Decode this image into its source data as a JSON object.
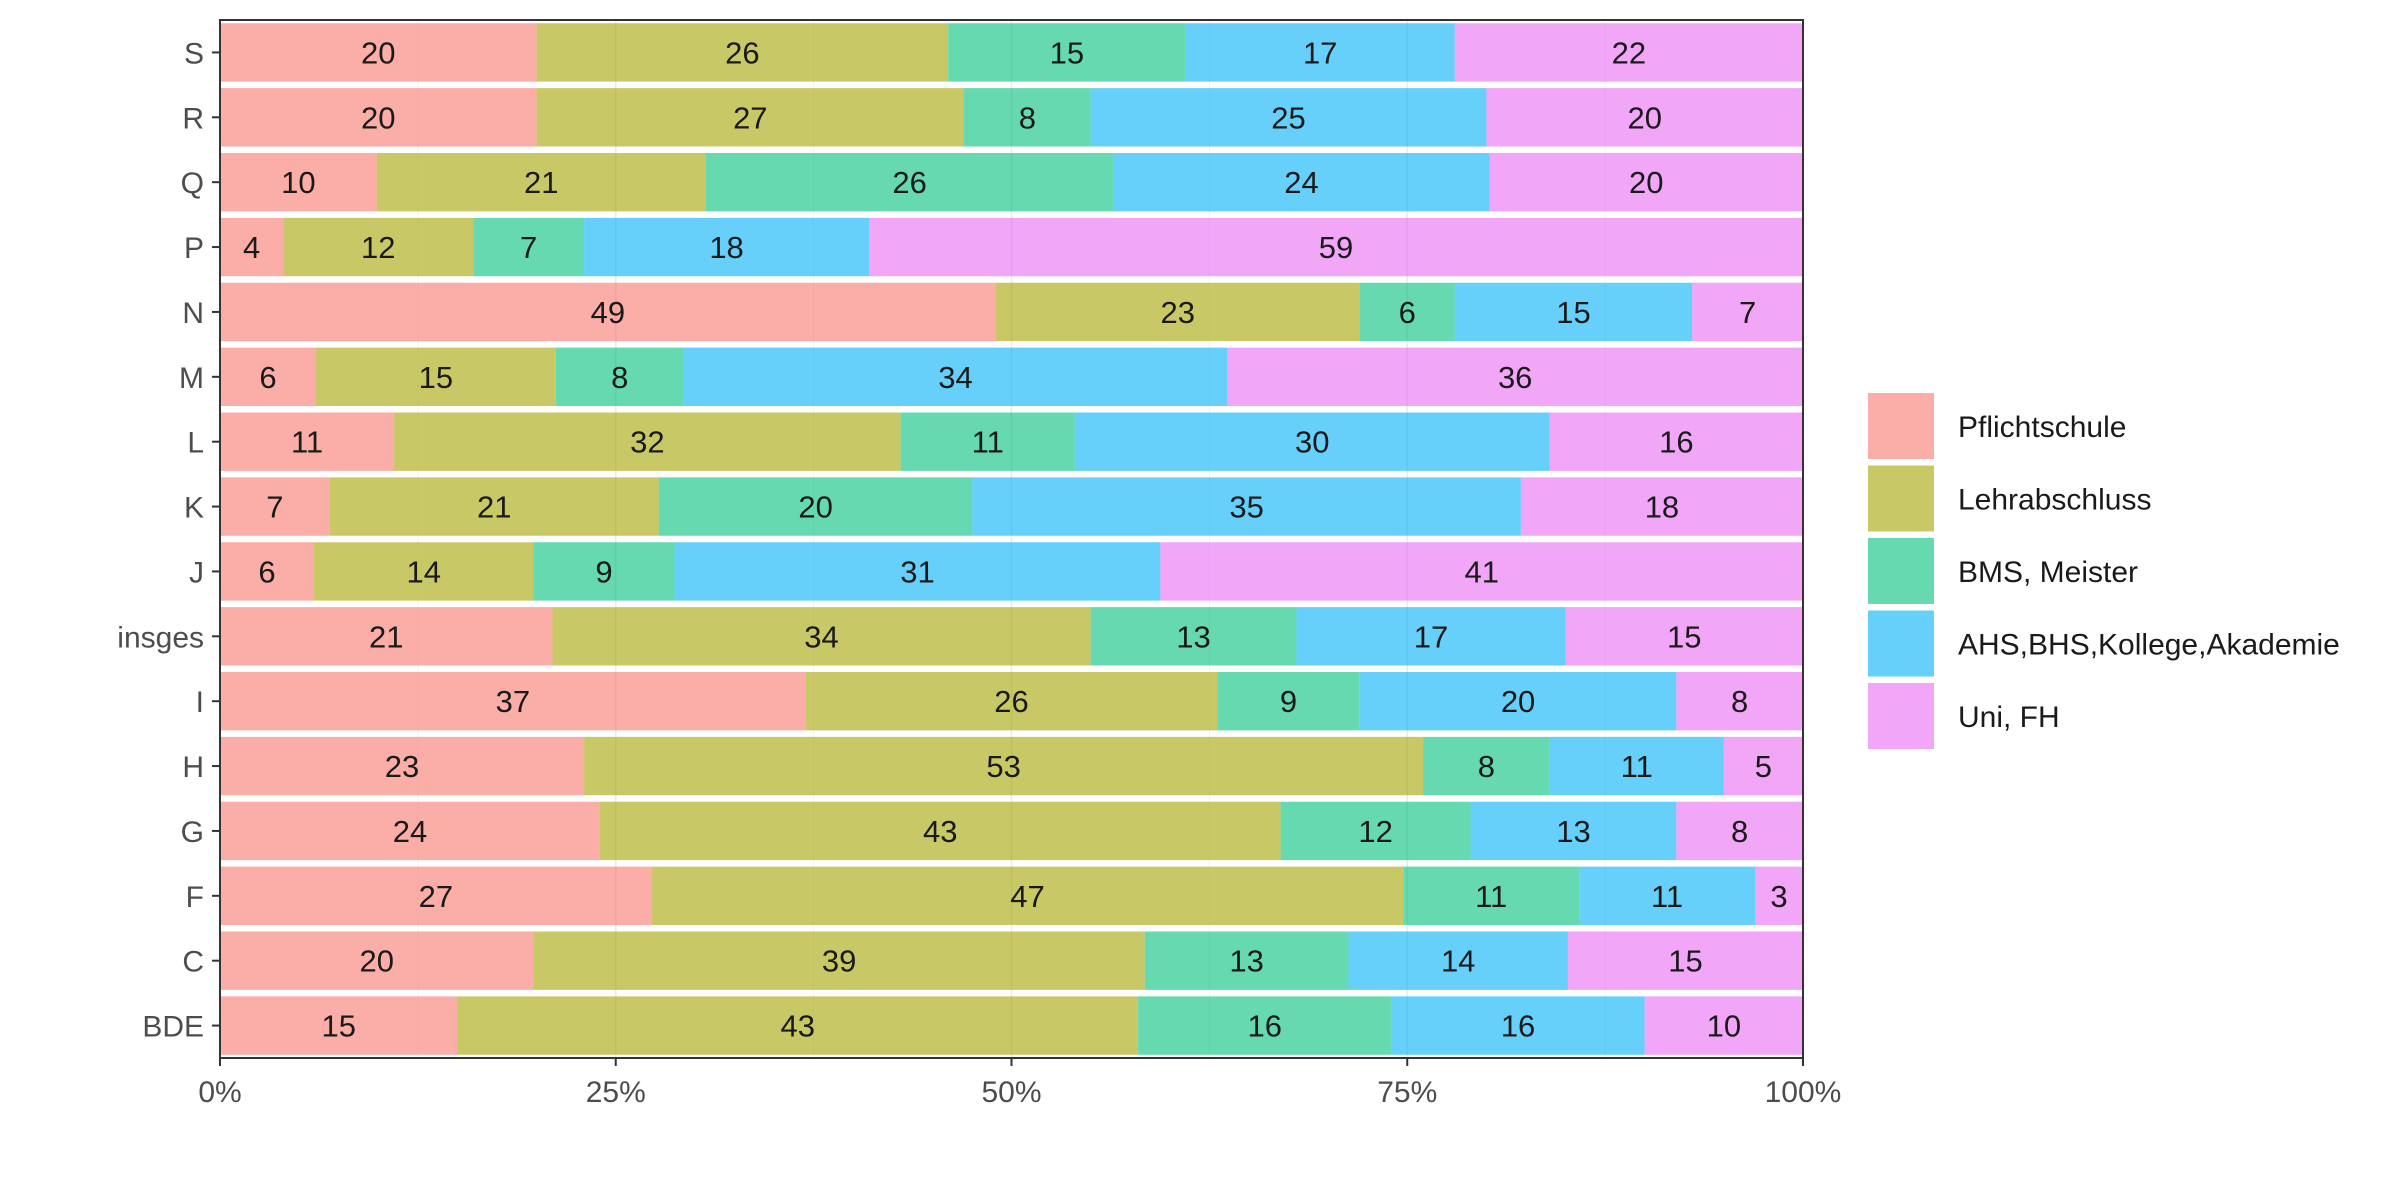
{
  "chart_data": {
    "type": "bar",
    "orientation": "horizontal",
    "stacked": "percent",
    "categories": [
      "S",
      "R",
      "Q",
      "P",
      "N",
      "M",
      "L",
      "K",
      "J",
      "insges",
      "I",
      "H",
      "G",
      "F",
      "C",
      "BDE"
    ],
    "series": [
      {
        "name": "Pflichtschule",
        "color": "#F8766D",
        "values": [
          20,
          20,
          10,
          4,
          49,
          6,
          11,
          7,
          6,
          21,
          37,
          23,
          24,
          27,
          20,
          15
        ]
      },
      {
        "name": "Lehrabschluss",
        "color": "#A3A500",
        "values": [
          26,
          27,
          21,
          12,
          23,
          15,
          32,
          21,
          14,
          34,
          26,
          53,
          43,
          47,
          39,
          43
        ]
      },
      {
        "name": "BMS, Meister",
        "color": "#00BF7D",
        "values": [
          15,
          8,
          26,
          7,
          6,
          8,
          11,
          20,
          9,
          13,
          9,
          8,
          12,
          11,
          13,
          16
        ]
      },
      {
        "name": "AHS,BHS,Kollege,Akademie",
        "color": "#00B0F6",
        "values": [
          17,
          25,
          24,
          18,
          15,
          34,
          30,
          35,
          31,
          17,
          20,
          11,
          13,
          11,
          14,
          16
        ]
      },
      {
        "name": "Uni, FH",
        "color": "#E76BF3",
        "values": [
          22,
          20,
          20,
          59,
          7,
          36,
          16,
          18,
          41,
          15,
          8,
          5,
          8,
          3,
          15,
          10
        ]
      }
    ],
    "x_ticks": [
      "0%",
      "25%",
      "50%",
      "75%",
      "100%"
    ],
    "xlim": [
      0,
      100
    ],
    "bar_opacity": 0.6,
    "legend_position": "right",
    "title": "",
    "xlabel": "",
    "ylabel": ""
  }
}
